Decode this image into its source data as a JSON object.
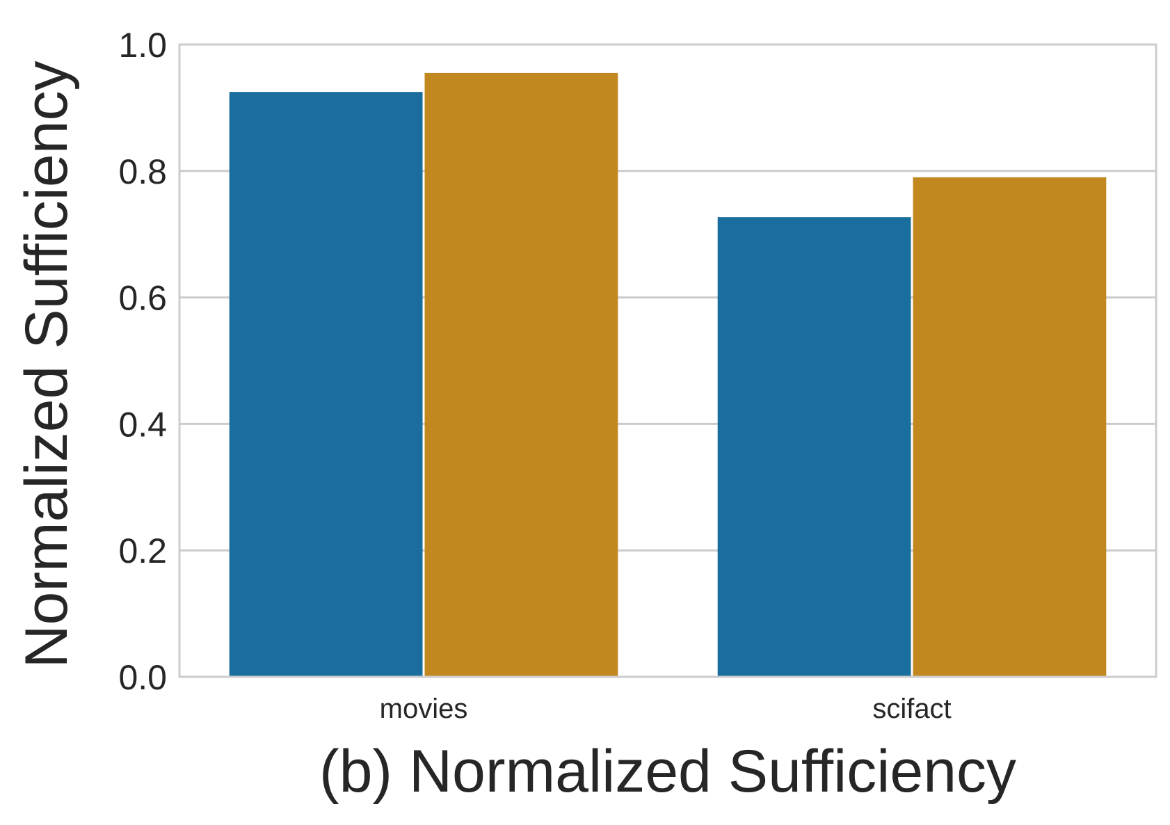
{
  "chart_data": {
    "type": "bar",
    "categories": [
      "movies",
      "scifact"
    ],
    "series": [
      {
        "values": [
          0.925,
          0.727
        ],
        "color": "#1a6e9e"
      },
      {
        "values": [
          0.955,
          0.79
        ],
        "color": "#c28820"
      }
    ],
    "xlabel": "(b) Normalized Sufficiency",
    "ylabel": "Normalized Sufficiency",
    "ylim": [
      0,
      1.0
    ],
    "yticks": [
      "0.0",
      "0.2",
      "0.4",
      "0.6",
      "0.8",
      "1.0"
    ],
    "grid": "horizontal",
    "legend": "none",
    "colors": {
      "grid": "#cccccc",
      "frame": "#cccccc",
      "text": "#262626",
      "background": "#ffffff"
    }
  }
}
